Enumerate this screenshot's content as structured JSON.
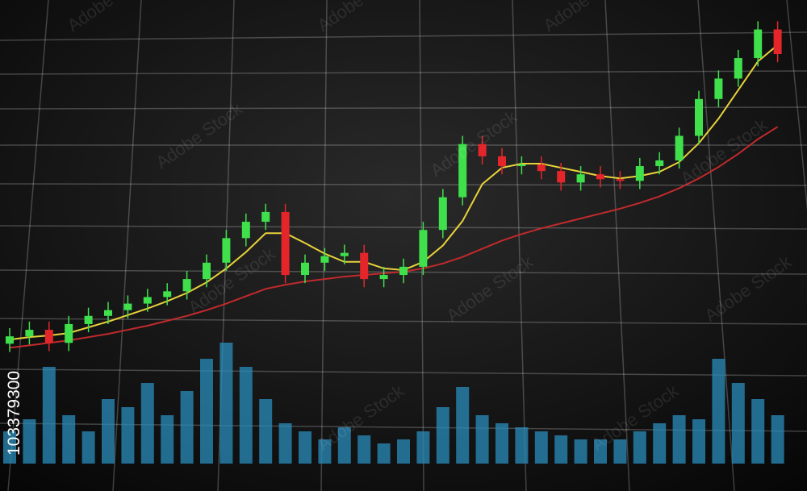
{
  "chart_data": {
    "type": "candlestick",
    "image_id": "103379300",
    "watermark": "Adobe Stock",
    "ylim": [
      0,
      600
    ],
    "up_color": "#3fe04c",
    "down_color": "#e4262b",
    "open": [
      180,
      189,
      197,
      181,
      204,
      214,
      221,
      229,
      237,
      244,
      259,
      279,
      309,
      329,
      341,
      264,
      279,
      287,
      291,
      259,
      264,
      274,
      319,
      359,
      424,
      409,
      397,
      399,
      391,
      377,
      387,
      381,
      379,
      397,
      404,
      434,
      479,
      504,
      529,
      564
    ],
    "high": [
      199,
      207,
      207,
      214,
      224,
      231,
      239,
      247,
      254,
      269,
      289,
      319,
      339,
      351,
      351,
      289,
      297,
      301,
      301,
      274,
      284,
      329,
      369,
      434,
      434,
      419,
      409,
      409,
      401,
      397,
      397,
      391,
      407,
      414,
      444,
      489,
      514,
      539,
      574,
      574
    ],
    "low": [
      170,
      179,
      171,
      171,
      194,
      204,
      211,
      219,
      227,
      234,
      249,
      269,
      299,
      319,
      254,
      254,
      269,
      277,
      249,
      249,
      254,
      264,
      309,
      349,
      399,
      387,
      387,
      381,
      367,
      367,
      371,
      369,
      369,
      387,
      394,
      424,
      469,
      494,
      519,
      524
    ],
    "close": [
      189,
      197,
      181,
      204,
      214,
      221,
      229,
      237,
      244,
      259,
      279,
      309,
      329,
      341,
      264,
      279,
      287,
      291,
      259,
      264,
      274,
      319,
      359,
      424,
      409,
      397,
      399,
      391,
      377,
      387,
      381,
      379,
      397,
      404,
      434,
      479,
      504,
      529,
      564,
      534
    ],
    "lines": [
      {
        "color": "#e8d23a",
        "values": [
          185,
          188,
          190,
          193,
          200,
          207,
          215,
          223,
          232,
          242,
          255,
          272,
          292,
          315,
          315,
          303,
          290,
          280,
          280,
          272,
          270,
          280,
          300,
          330,
          375,
          395,
          400,
          400,
          395,
          390,
          385,
          382,
          385,
          390,
          402,
          425,
          455,
          490,
          525,
          545
        ]
      },
      {
        "color": "#c22a2c",
        "values": [
          175,
          178,
          181,
          184,
          188,
          192,
          197,
          202,
          208,
          214,
          221,
          229,
          238,
          247,
          252,
          256,
          259,
          262,
          264,
          266,
          268,
          272,
          278,
          286,
          296,
          306,
          314,
          321,
          327,
          333,
          339,
          345,
          352,
          360,
          370,
          382,
          396,
          412,
          430,
          445
        ]
      }
    ],
    "volume": {
      "color": "#2a8cbc",
      "ylim": [
        0,
        200
      ],
      "values": [
        40,
        55,
        120,
        60,
        40,
        80,
        70,
        100,
        60,
        90,
        130,
        150,
        120,
        80,
        50,
        40,
        30,
        45,
        35,
        25,
        30,
        40,
        70,
        95,
        60,
        50,
        45,
        40,
        35,
        30,
        30,
        30,
        40,
        50,
        60,
        55,
        130,
        100,
        80,
        60
      ]
    }
  }
}
